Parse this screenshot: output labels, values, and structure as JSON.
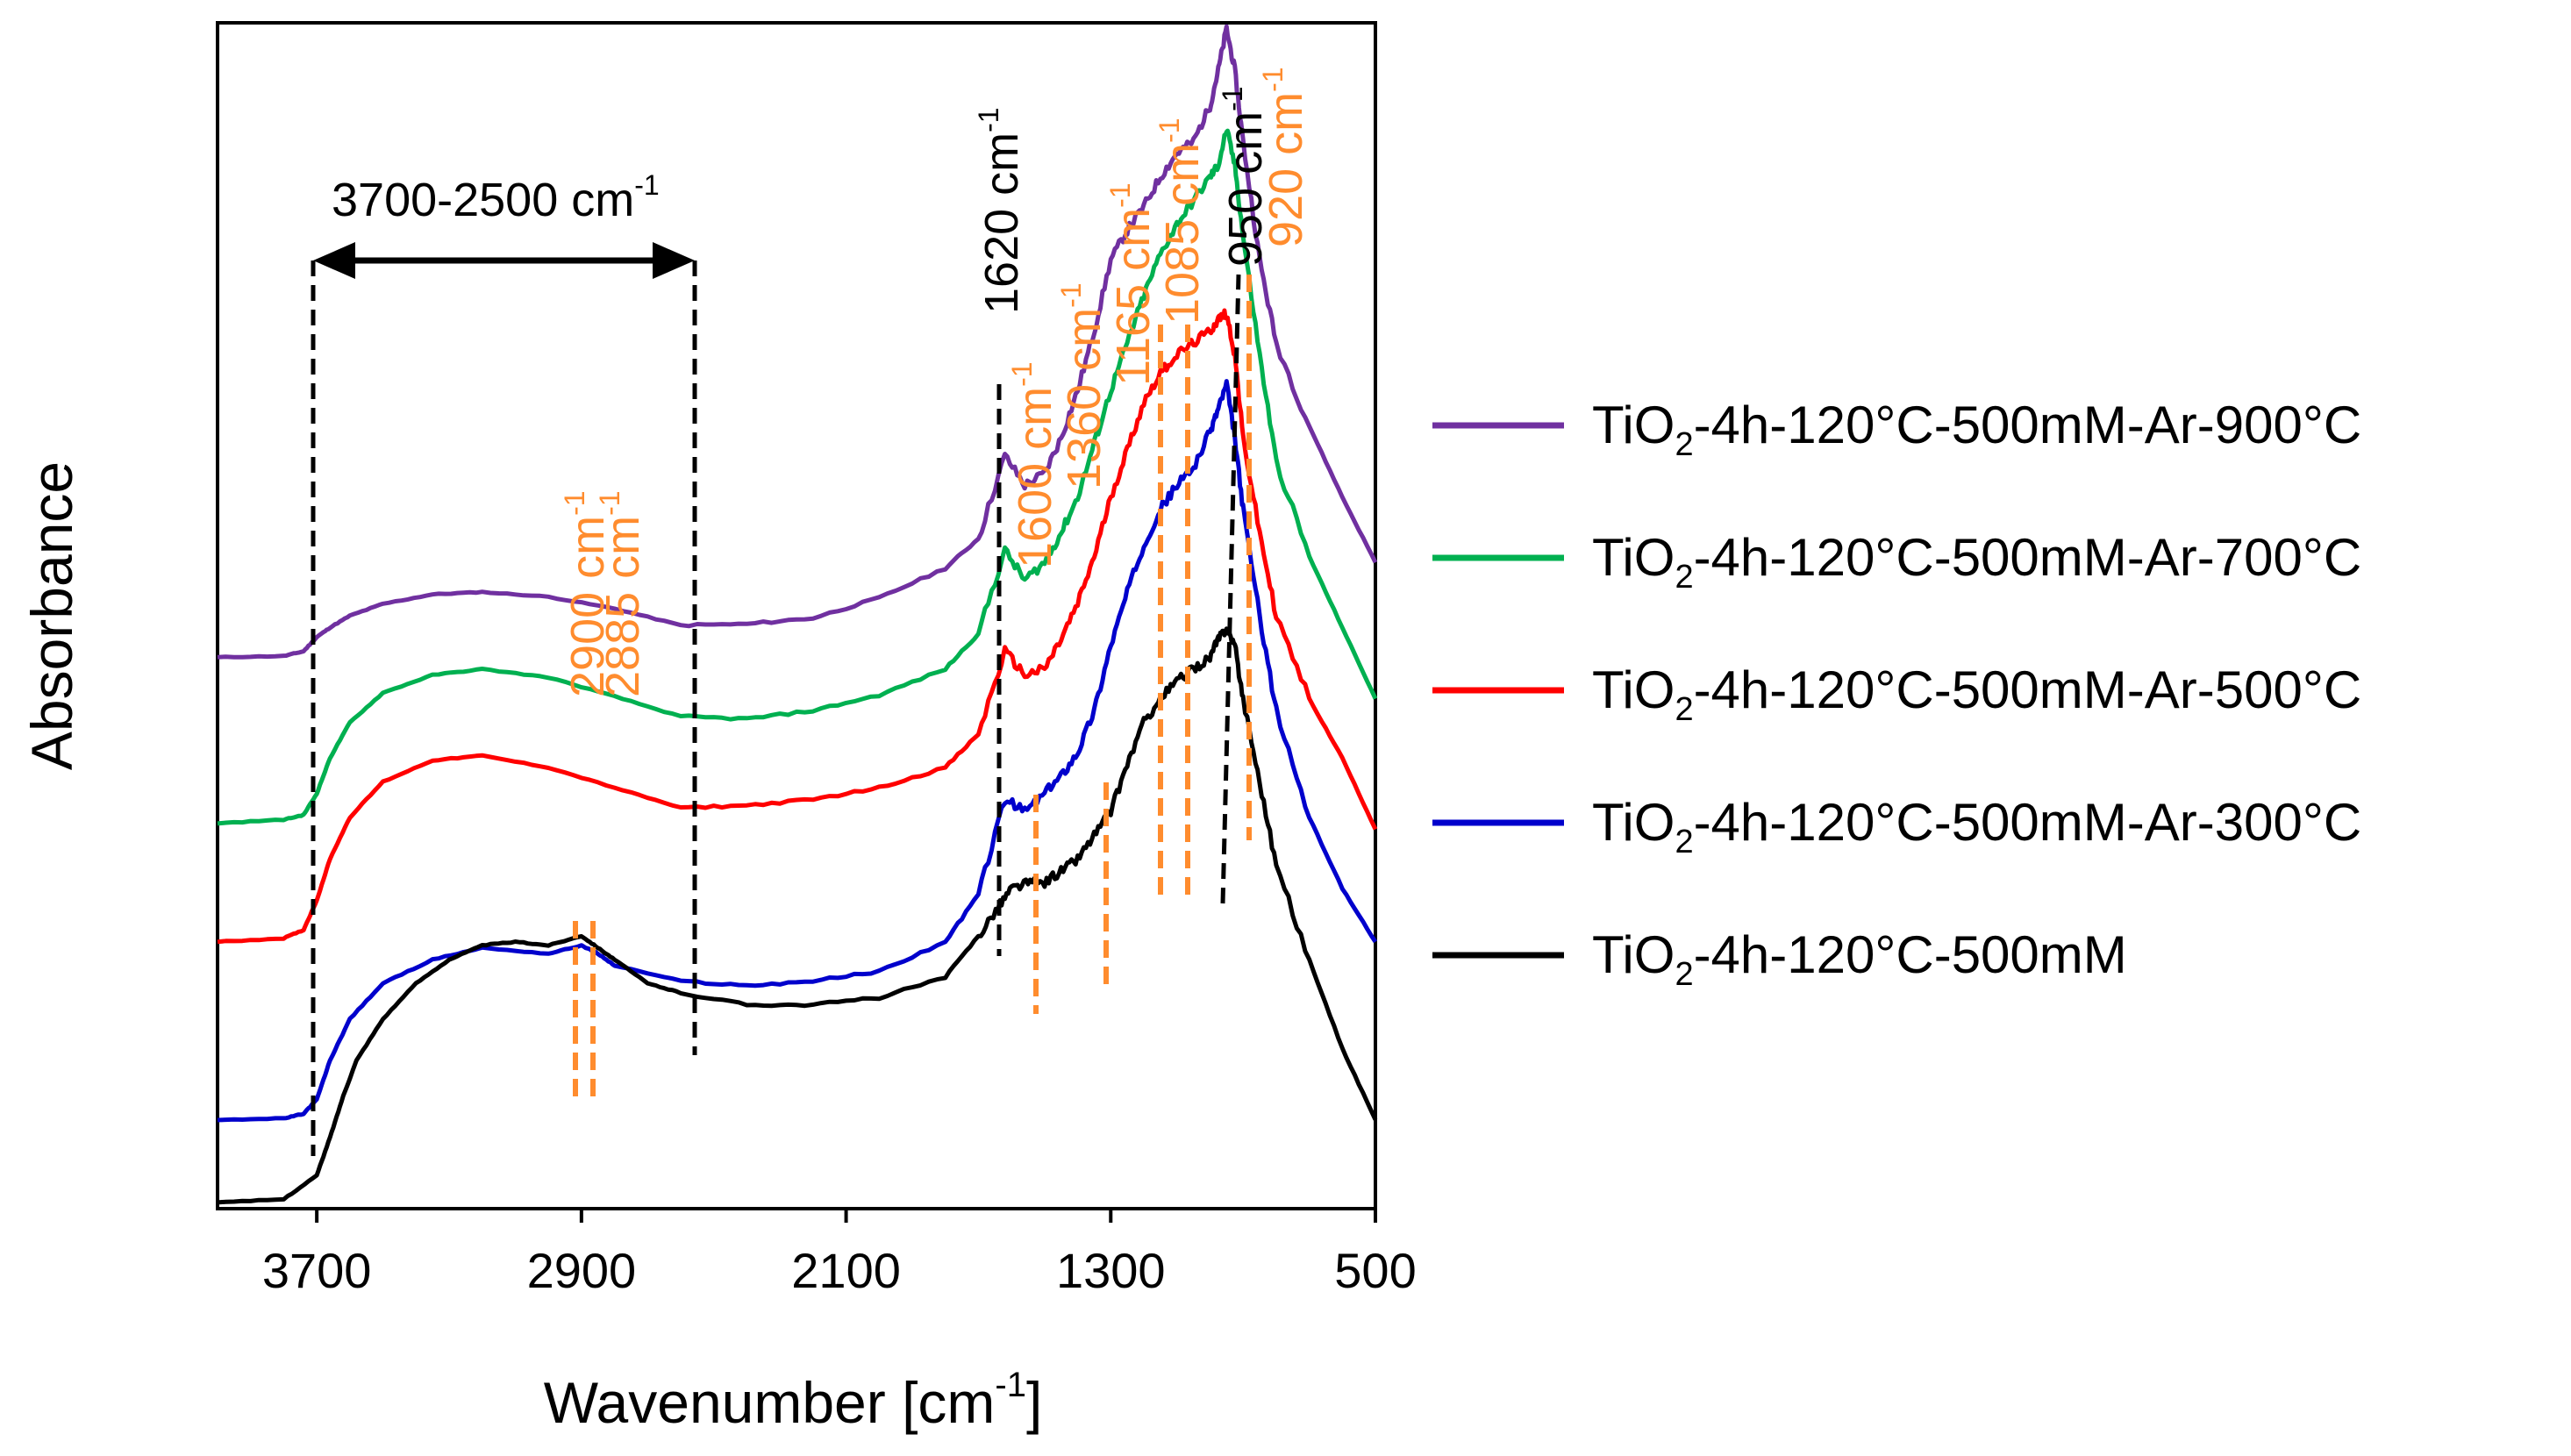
{
  "chart_data": {
    "type": "line",
    "xlabel_main": "Wavenumber [cm",
    "xlabel_sup": "-1",
    "xlabel_end": "]",
    "ylabel": "Absorbance",
    "x_reversed": true,
    "xlim": [
      4000,
      500
    ],
    "ylim": [
      0,
      10
    ],
    "x_ticks": [
      {
        "value": 3700,
        "label": "3700"
      },
      {
        "value": 2900,
        "label": "2900"
      },
      {
        "value": 2100,
        "label": "2100"
      },
      {
        "value": 1300,
        "label": "1300"
      },
      {
        "value": 500,
        "label": "500"
      }
    ],
    "series": [
      {
        "name": "TiO2-4h-120°C-500mM-Ar-900°C",
        "label_pre": "TiO",
        "label_sub": "2",
        "label_post": "-4h-120°C-500mM-Ar-900°C",
        "color": "#7030a0",
        "x": [
          4000,
          3800,
          3740,
          3700,
          3660,
          3600,
          3500,
          3350,
          3200,
          3000,
          2800,
          2600,
          2400,
          2200,
          2000,
          1800,
          1700,
          1620,
          1560,
          1500,
          1450,
          1400,
          1350,
          1300,
          1250,
          1200,
          1150,
          1100,
          1050,
          1000,
          975,
          950,
          925,
          900,
          850,
          800,
          700,
          600,
          500
        ],
        "y": [
          4.65,
          4.66,
          4.7,
          4.82,
          4.9,
          5.0,
          5.1,
          5.18,
          5.2,
          5.16,
          5.06,
          4.92,
          4.93,
          4.98,
          5.15,
          5.4,
          5.65,
          6.35,
          6.1,
          6.2,
          6.5,
          6.9,
          7.4,
          8.0,
          8.25,
          8.45,
          8.7,
          8.9,
          9.0,
          9.3,
          9.6,
          9.95,
          9.6,
          9.0,
          8.0,
          7.3,
          6.6,
          6.0,
          5.45
        ]
      },
      {
        "name": "TiO2-4h-120°C-500mM-Ar-700°C",
        "label_pre": "TiO",
        "label_sub": "2",
        "label_post": "-4h-120°C-500mM-Ar-700°C",
        "color": "#00b050",
        "x": [
          4000,
          3800,
          3740,
          3700,
          3660,
          3600,
          3500,
          3350,
          3200,
          3000,
          2800,
          2600,
          2400,
          2200,
          2000,
          1800,
          1700,
          1620,
          1560,
          1500,
          1450,
          1400,
          1350,
          1300,
          1250,
          1200,
          1150,
          1100,
          1050,
          1000,
          975,
          950,
          925,
          900,
          850,
          800,
          700,
          600,
          500
        ],
        "y": [
          3.25,
          3.28,
          3.32,
          3.5,
          3.8,
          4.1,
          4.35,
          4.5,
          4.55,
          4.48,
          4.32,
          4.15,
          4.13,
          4.2,
          4.33,
          4.55,
          4.85,
          5.55,
          5.3,
          5.45,
          5.7,
          6.0,
          6.45,
          6.9,
          7.3,
          7.7,
          8.05,
          8.3,
          8.5,
          8.7,
          8.8,
          9.1,
          8.8,
          8.2,
          7.2,
          6.3,
          5.5,
          4.9,
          4.3
        ]
      },
      {
        "name": "TiO2-4h-120°C-500mM-Ar-500°C",
        "label_pre": "TiO",
        "label_sub": "2",
        "label_post": "-4h-120°C-500mM-Ar-500°C",
        "color": "#ff0000",
        "x": [
          4000,
          3800,
          3740,
          3700,
          3660,
          3600,
          3500,
          3350,
          3200,
          3000,
          2800,
          2600,
          2400,
          2200,
          2000,
          1800,
          1700,
          1620,
          1560,
          1500,
          1450,
          1400,
          1350,
          1300,
          1250,
          1200,
          1150,
          1100,
          1050,
          1000,
          975,
          950,
          925,
          900,
          850,
          800,
          700,
          600,
          500
        ],
        "y": [
          2.25,
          2.28,
          2.35,
          2.6,
          2.95,
          3.3,
          3.6,
          3.78,
          3.82,
          3.72,
          3.55,
          3.38,
          3.4,
          3.45,
          3.55,
          3.72,
          4.0,
          4.7,
          4.5,
          4.55,
          4.8,
          5.1,
          5.5,
          6.0,
          6.4,
          6.8,
          7.05,
          7.2,
          7.3,
          7.4,
          7.5,
          7.55,
          7.2,
          6.5,
          5.7,
          5.0,
          4.3,
          3.8,
          3.2
        ]
      },
      {
        "name": "TiO2-4h-120°C-500mM-Ar-300°C",
        "label_pre": "TiO",
        "label_sub": "2",
        "label_post": "-4h-120°C-500mM-Ar-300°C",
        "color": "#0000cc",
        "x": [
          4000,
          3800,
          3740,
          3700,
          3660,
          3600,
          3500,
          3350,
          3200,
          3000,
          2900,
          2850,
          2800,
          2600,
          2400,
          2200,
          2000,
          1800,
          1700,
          1620,
          1560,
          1500,
          1450,
          1400,
          1350,
          1300,
          1250,
          1200,
          1150,
          1100,
          1050,
          1000,
          975,
          950,
          925,
          900,
          850,
          800,
          700,
          600,
          500
        ],
        "y": [
          0.75,
          0.76,
          0.8,
          0.92,
          1.25,
          1.6,
          1.9,
          2.1,
          2.2,
          2.15,
          2.22,
          2.15,
          2.05,
          1.92,
          1.88,
          1.92,
          2.0,
          2.25,
          2.65,
          3.45,
          3.35,
          3.5,
          3.65,
          3.85,
          4.2,
          4.75,
          5.2,
          5.6,
          5.9,
          6.1,
          6.25,
          6.55,
          6.75,
          6.95,
          6.5,
          5.9,
          5.0,
          4.2,
          3.3,
          2.7,
          2.25
        ]
      },
      {
        "name": "TiO2-4h-120°C-500mM",
        "label_pre": "TiO",
        "label_sub": "2",
        "label_post": "-4h-120°C-500mM",
        "color": "#000000",
        "x": [
          4000,
          3800,
          3700,
          3660,
          3620,
          3580,
          3500,
          3400,
          3300,
          3200,
          3100,
          3000,
          2900,
          2850,
          2800,
          2700,
          2600,
          2400,
          2200,
          2000,
          1800,
          1700,
          1640,
          1600,
          1550,
          1500,
          1450,
          1400,
          1350,
          1300,
          1250,
          1200,
          1150,
          1100,
          1050,
          1000,
          975,
          950,
          925,
          900,
          850,
          800,
          700,
          600,
          500
        ],
        "y": [
          0.05,
          0.08,
          0.28,
          0.6,
          0.95,
          1.25,
          1.6,
          1.9,
          2.1,
          2.22,
          2.25,
          2.22,
          2.3,
          2.2,
          2.1,
          1.9,
          1.82,
          1.72,
          1.72,
          1.78,
          1.95,
          2.3,
          2.55,
          2.7,
          2.75,
          2.75,
          2.85,
          2.95,
          3.15,
          3.35,
          3.75,
          4.1,
          4.3,
          4.45,
          4.55,
          4.65,
          4.8,
          4.9,
          4.75,
          4.3,
          3.6,
          2.9,
          2.1,
          1.35,
          0.75
        ]
      }
    ],
    "range_annotation": {
      "label": "3700-2500 cm",
      "sup": "-1",
      "from": 3700,
      "to": 2500
    },
    "peak_annotations": [
      {
        "label": "1620 cm",
        "sup": "-1",
        "color": "#000000"
      },
      {
        "label": "950 cm",
        "sup": "-1",
        "color": "#000000"
      },
      {
        "label": "2900 cm",
        "sup": "-1",
        "color": "#ff8c2e"
      },
      {
        "label": "2885 cm",
        "sup": "-1",
        "color": "#ff8c2e"
      },
      {
        "label": "1600 cm",
        "sup": "-1",
        "color": "#ff8c2e"
      },
      {
        "label": "1360 cm",
        "sup": "-1",
        "color": "#ff8c2e"
      },
      {
        "label": "1165 cm",
        "sup": "-1",
        "color": "#ff8c2e"
      },
      {
        "label": "1085 cm",
        "sup": "-1",
        "color": "#ff8c2e"
      },
      {
        "label": "920 cm",
        "sup": "-1",
        "color": "#ff8c2e"
      }
    ]
  }
}
